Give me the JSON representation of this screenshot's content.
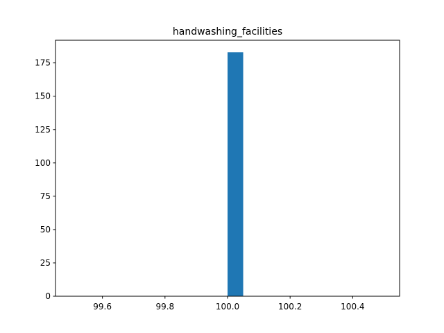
{
  "chart_data": {
    "type": "bar",
    "title": "handwashing_facilities",
    "xlabel": "",
    "ylabel": "",
    "bins": [
      {
        "x0": 100.0,
        "x1": 100.05,
        "count": 183
      }
    ],
    "xlim": [
      99.45,
      100.55
    ],
    "ylim": [
      0,
      192
    ],
    "x_ticks": [
      99.6,
      99.8,
      100.0,
      100.2,
      100.4
    ],
    "x_tick_labels": [
      "99.6",
      "99.8",
      "100.0",
      "100.2",
      "100.4"
    ],
    "y_ticks": [
      0,
      25,
      50,
      75,
      100,
      125,
      150,
      175
    ],
    "y_tick_labels": [
      "0",
      "25",
      "50",
      "75",
      "100",
      "125",
      "150",
      "175"
    ],
    "grid": false,
    "bar_color": "#1f77b4"
  }
}
